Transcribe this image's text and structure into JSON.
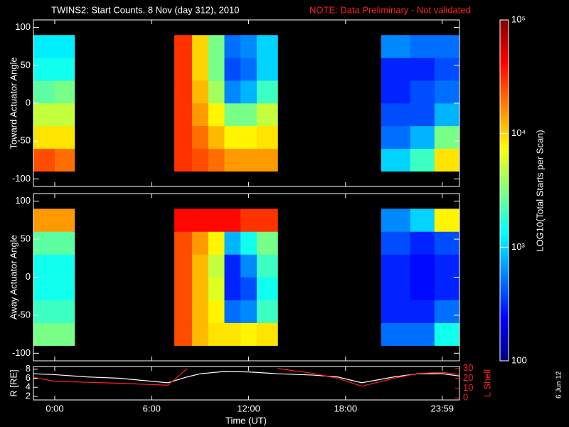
{
  "title": "TWINS2: Start Counts.  8 Nov (day 312), 2010",
  "note": "NOTE: Data Preliminary - Not validated",
  "date_stamp": "6 Jun 12",
  "xlabel": "Time (UT)",
  "xlim": [
    -1.32,
    25.05
  ],
  "xticks": [
    {
      "value": 0,
      "label": "0:00"
    },
    {
      "value": 6,
      "label": "6:00"
    },
    {
      "value": 12,
      "label": "12:00"
    },
    {
      "value": 18,
      "label": "18:00"
    },
    {
      "value": 23.983,
      "label": "23:59"
    }
  ],
  "colorbar": {
    "label": "LOG10(Total Starts per Scan)",
    "lim": [
      100,
      100000
    ],
    "log": true,
    "ticks": [
      {
        "value": 100000,
        "label": "10⁵"
      },
      {
        "value": 10000,
        "label": "10⁴"
      },
      {
        "value": 1000,
        "label": "10³"
      },
      100
    ]
  },
  "chart_data": [
    {
      "type": "heatmap",
      "ylabel": "Toward Actuator Angle",
      "ylim": [
        -110,
        110
      ],
      "yticks": [
        -100,
        -50,
        0,
        50,
        100
      ],
      "x_edges": [
        -1.32,
        0,
        1.23,
        7.4,
        8.5,
        9.5,
        10.5,
        11.5,
        12.5,
        13.8,
        20.2,
        22,
        23.5,
        25.05
      ],
      "y_edges": [
        -90,
        -60,
        -30,
        0,
        30,
        60,
        90
      ],
      "values": [
        [
          25000,
          20000,
          null,
          30000,
          25000,
          20000,
          15000,
          15000,
          15000,
          null,
          1000,
          2000,
          9000
        ],
        [
          9000,
          9000,
          null,
          30000,
          20000,
          12000,
          8000,
          8000,
          9000,
          null,
          500,
          800,
          3000
        ],
        [
          5000,
          5000,
          null,
          30000,
          15000,
          8000,
          3000,
          3000,
          5000,
          null,
          400,
          400,
          800
        ],
        [
          2500,
          3000,
          null,
          30000,
          12000,
          4000,
          600,
          800,
          2000,
          null,
          300,
          400,
          500
        ],
        [
          1500,
          1500,
          null,
          30000,
          10000,
          3000,
          400,
          500,
          1000,
          null,
          300,
          300,
          400
        ],
        [
          1200,
          1200,
          null,
          30000,
          10000,
          3000,
          500,
          600,
          1000,
          null,
          600,
          500,
          500
        ]
      ]
    },
    {
      "type": "heatmap",
      "ylabel": "Away Actuator Angle",
      "ylim": [
        -110,
        110
      ],
      "yticks": [
        -100,
        -50,
        0,
        50,
        100
      ],
      "x_edges": [
        -1.32,
        0,
        1.23,
        7.4,
        8.5,
        9.5,
        10.5,
        11.5,
        12.5,
        13.8,
        20.2,
        22,
        23.5,
        25.05
      ],
      "y_edges": [
        -90,
        -60,
        -30,
        0,
        30,
        60,
        90
      ],
      "values": [
        [
          3000,
          3000,
          null,
          25000,
          12000,
          9000,
          9000,
          8000,
          9000,
          null,
          500,
          500,
          1500
        ],
        [
          2000,
          2000,
          null,
          25000,
          12000,
          8000,
          500,
          600,
          2000,
          null,
          300,
          300,
          500
        ],
        [
          1500,
          1500,
          null,
          25000,
          12000,
          6000,
          300,
          400,
          1500,
          null,
          300,
          250,
          300
        ],
        [
          1500,
          1500,
          null,
          25000,
          12000,
          5000,
          300,
          600,
          2000,
          null,
          300,
          250,
          300
        ],
        [
          2500,
          2500,
          null,
          25000,
          15000,
          8000,
          800,
          1500,
          3000,
          null,
          400,
          300,
          400
        ],
        [
          15000,
          15000,
          null,
          40000,
          40000,
          40000,
          40000,
          30000,
          30000,
          null,
          600,
          1000,
          8000
        ]
      ]
    },
    {
      "type": "line",
      "ylabel": "R [RE]",
      "y2label": "L Shell",
      "ylim": [
        1.2,
        8.6
      ],
      "yticks": [
        2,
        4,
        6,
        8
      ],
      "y2lim": [
        -2,
        32
      ],
      "y2ticks": [
        0,
        10,
        20,
        30
      ],
      "x": [
        -1.32,
        0,
        2,
        4,
        7,
        8.2,
        9,
        10.5,
        12,
        13.8,
        16,
        17.5,
        19,
        21,
        22.5,
        24,
        25.05
      ],
      "series": [
        {
          "name": "R",
          "color": "#ffffff",
          "values": [
            7.0,
            6.8,
            6.3,
            6.0,
            5.0,
            6.3,
            7.0,
            7.5,
            7.4,
            7.0,
            6.7,
            6.3,
            5.0,
            6.3,
            7.0,
            7.0,
            6.5
          ]
        },
        {
          "name": "L Shell",
          "color": "#ff2020",
          "axis": "y2",
          "values": [
            21,
            17,
            16,
            15,
            13,
            30,
            null,
            null,
            null,
            30,
            25,
            20,
            12,
            20,
            25,
            26,
            24
          ]
        }
      ]
    }
  ]
}
